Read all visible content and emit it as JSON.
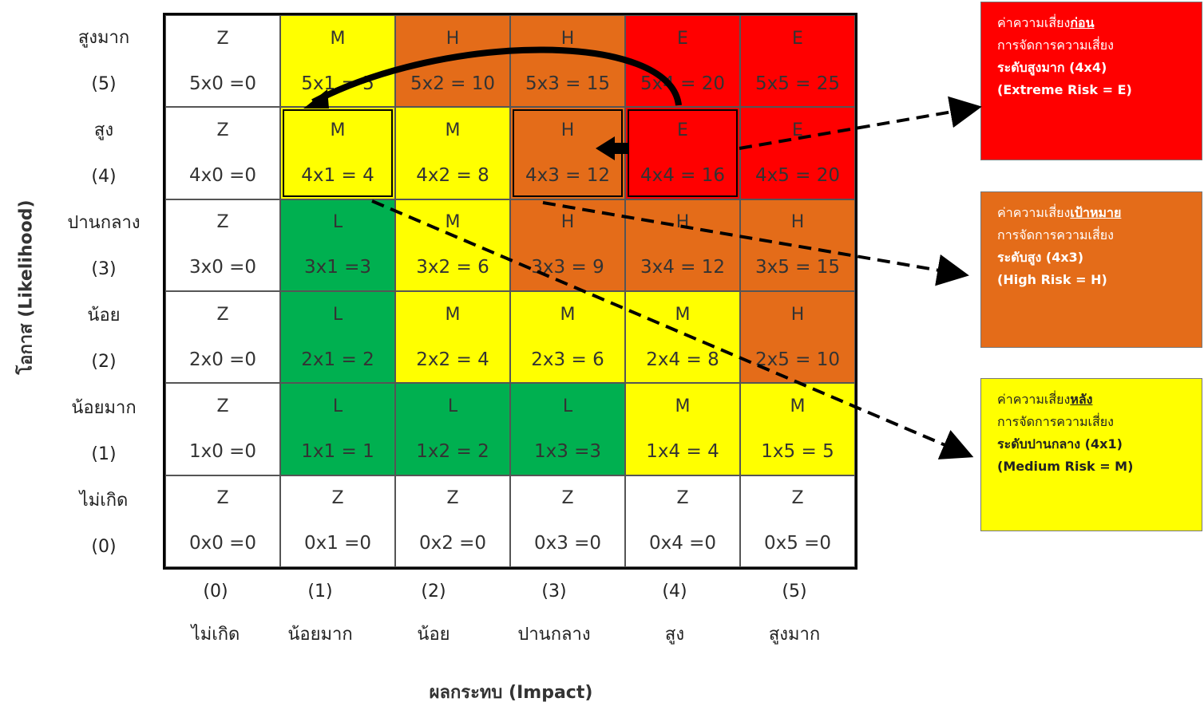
{
  "y_axis": {
    "label": "โอกาส (Likelihood)"
  },
  "x_axis": {
    "label": "ผลกระทบ (Impact)"
  },
  "rows": [
    {
      "name": "สูงมาก",
      "value": "(5)",
      "cells": [
        {
          "level": "Z",
          "formula": "5x0 =0",
          "color": "#ffffff"
        },
        {
          "level": "M",
          "formula": "5x1 = 5",
          "color": "#ffff00"
        },
        {
          "level": "H",
          "formula": "5x2 = 10",
          "color": "#e46c19"
        },
        {
          "level": "H",
          "formula": "5x3 = 15",
          "color": "#e46c19"
        },
        {
          "level": "E",
          "formula": "5x4 = 20",
          "color": "#ff0000"
        },
        {
          "level": "E",
          "formula": "5x5 = 25",
          "color": "#ff0000"
        }
      ]
    },
    {
      "name": "สูง",
      "value": "(4)",
      "cells": [
        {
          "level": "Z",
          "formula": "4x0 =0",
          "color": "#ffffff"
        },
        {
          "level": "M",
          "formula": "4x1 = 4",
          "color": "#ffff00"
        },
        {
          "level": "M",
          "formula": "4x2 = 8",
          "color": "#ffff00"
        },
        {
          "level": "H",
          "formula": "4x3 = 12",
          "color": "#e46c19"
        },
        {
          "level": "E",
          "formula": "4x4 = 16",
          "color": "#ff0000"
        },
        {
          "level": "E",
          "formula": "4x5 = 20",
          "color": "#ff0000"
        }
      ]
    },
    {
      "name": "ปานกลาง",
      "value": "(3)",
      "cells": [
        {
          "level": "Z",
          "formula": "3x0 =0",
          "color": "#ffffff"
        },
        {
          "level": "L",
          "formula": "3x1 =3",
          "color": "#00b050"
        },
        {
          "level": "M",
          "formula": "3x2 = 6",
          "color": "#ffff00"
        },
        {
          "level": "H",
          "formula": "3x3 = 9",
          "color": "#e46c19"
        },
        {
          "level": "H",
          "formula": "3x4 = 12",
          "color": "#e46c19"
        },
        {
          "level": "H",
          "formula": "3x5 = 15",
          "color": "#e46c19"
        }
      ]
    },
    {
      "name": "น้อย",
      "value": "(2)",
      "cells": [
        {
          "level": "Z",
          "formula": "2x0 =0",
          "color": "#ffffff"
        },
        {
          "level": "L",
          "formula": "2x1 = 2",
          "color": "#00b050"
        },
        {
          "level": "M",
          "formula": "2x2 = 4",
          "color": "#ffff00"
        },
        {
          "level": "M",
          "formula": "2x3 = 6",
          "color": "#ffff00"
        },
        {
          "level": "M",
          "formula": "2x4 = 8",
          "color": "#ffff00"
        },
        {
          "level": "H",
          "formula": "2x5 = 10",
          "color": "#e46c19"
        }
      ]
    },
    {
      "name": "น้อยมาก",
      "value": "(1)",
      "cells": [
        {
          "level": "Z",
          "formula": "1x0 =0",
          "color": "#ffffff"
        },
        {
          "level": "L",
          "formula": "1x1 = 1",
          "color": "#00b050"
        },
        {
          "level": "L",
          "formula": "1x2 = 2",
          "color": "#00b050"
        },
        {
          "level": "L",
          "formula": "1x3 =3",
          "color": "#00b050"
        },
        {
          "level": "M",
          "formula": "1x4 = 4",
          "color": "#ffff00"
        },
        {
          "level": "M",
          "formula": "1x5 = 5",
          "color": "#ffff00"
        }
      ]
    },
    {
      "name": "ไม่เกิด",
      "value": "(0)",
      "cells": [
        {
          "level": "Z",
          "formula": "0x0 =0",
          "color": "#ffffff"
        },
        {
          "level": "Z",
          "formula": "0x1 =0",
          "color": "#ffffff"
        },
        {
          "level": "Z",
          "formula": "0x2 =0",
          "color": "#ffffff"
        },
        {
          "level": "Z",
          "formula": "0x3 =0",
          "color": "#ffffff"
        },
        {
          "level": "Z",
          "formula": "0x4 =0",
          "color": "#ffffff"
        },
        {
          "level": "Z",
          "formula": "0x5 =0",
          "color": "#ffffff"
        }
      ]
    }
  ],
  "columns": [
    {
      "value": "(0)",
      "name": "ไม่เกิด"
    },
    {
      "value": "(1)",
      "name": "น้อยมาก"
    },
    {
      "value": "(2)",
      "name": "น้อย"
    },
    {
      "value": "(3)",
      "name": "ปานกลาง"
    },
    {
      "value": "(4)",
      "name": "สูง"
    },
    {
      "value": "(5)",
      "name": "สูงมาก"
    }
  ],
  "boxes": {
    "before": {
      "prefix": "ค่าความเสี่ยง",
      "emph": "ก่อน",
      "line2": "การจัดการความเสี่ยง",
      "line3": "ระดับสูงมาก (4x4)",
      "line4": "(Extreme Risk = E)",
      "color": "#ff0000"
    },
    "target": {
      "prefix": "ค่าความเสี่ยง",
      "emph": "เป้าหมาย",
      "line2": "การจัดการความเสี่ยง",
      "line3": "ระดับสูง (4x3)",
      "line4": "(High Risk = H)",
      "color": "#e46c19"
    },
    "after": {
      "prefix": "ค่าความเสี่ยง",
      "emph": "หลัง",
      "line2": "การจัดการความเสี่ยง",
      "line3": "ระดับปานกลาง (4x1)",
      "line4": "(Medium Risk = M)",
      "color": "#ffff00"
    }
  }
}
